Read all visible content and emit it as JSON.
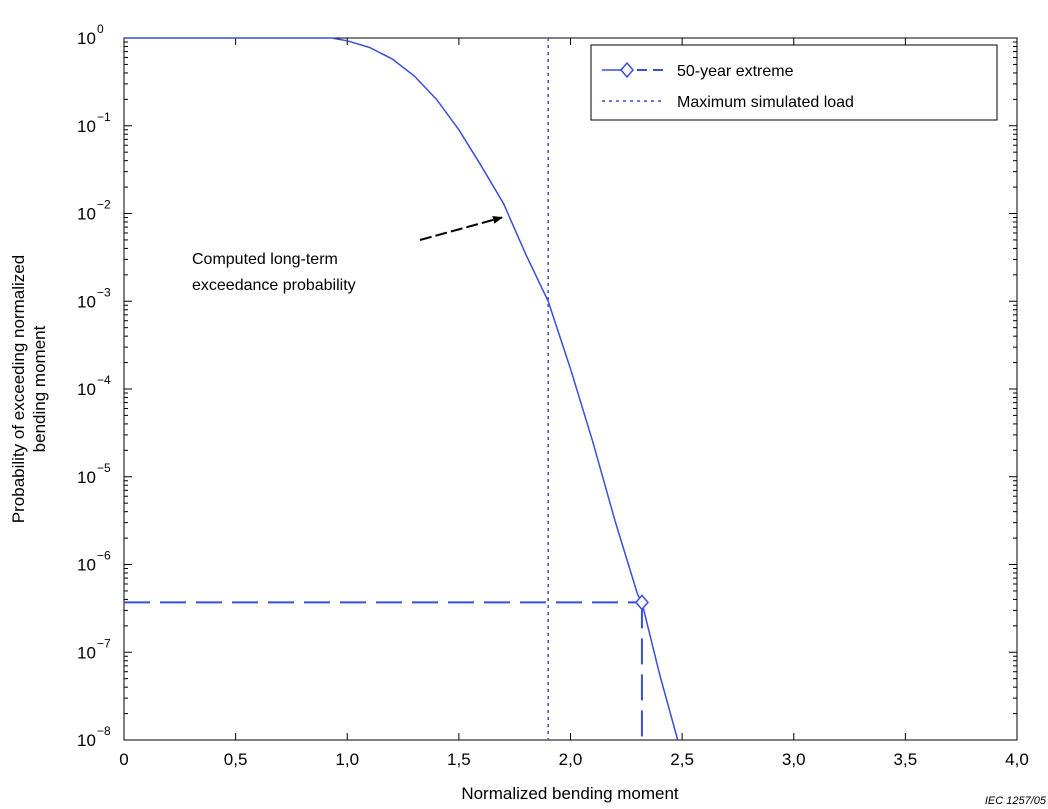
{
  "chart_data": {
    "type": "line",
    "xlabel": "Normalized bending moment",
    "ylabel_lines": [
      "Probability of exceeding normalized",
      "bending moment"
    ],
    "xlim": [
      0,
      4.0
    ],
    "ylim": [
      1e-08,
      1
    ],
    "yscale": "log",
    "grid": false,
    "legend_position": "top-right",
    "x_ticks": [
      0,
      0.5,
      1.0,
      1.5,
      2.0,
      2.5,
      3.0,
      3.5,
      4.0
    ],
    "x_tick_labels": [
      "0",
      "0,5",
      "1,0",
      "1,5",
      "2,0",
      "2,5",
      "3,0",
      "3,5",
      "4,0"
    ],
    "y_ticks": [
      {
        "value": 1,
        "base": "10",
        "exp": "0"
      },
      {
        "value": 0.1,
        "base": "10",
        "exp": "−1"
      },
      {
        "value": 0.01,
        "base": "10",
        "exp": "−2"
      },
      {
        "value": 0.001,
        "base": "10",
        "exp": "−3"
      },
      {
        "value": 0.0001,
        "base": "10",
        "exp": "−4"
      },
      {
        "value": 1e-05,
        "base": "10",
        "exp": "−5"
      },
      {
        "value": 1e-06,
        "base": "10",
        "exp": "−6"
      },
      {
        "value": 1e-07,
        "base": "10",
        "exp": "−7"
      },
      {
        "value": 1e-08,
        "base": "10",
        "exp": "−8"
      }
    ],
    "series": [
      {
        "name": "",
        "style": "solid",
        "color": "#3a4fd8",
        "x": [
          0,
          0.93,
          1.0,
          1.1,
          1.2,
          1.3,
          1.4,
          1.5,
          1.6,
          1.7,
          1.8,
          1.9,
          2.0,
          2.1,
          2.2,
          2.3,
          2.32,
          2.4,
          2.48
        ],
        "y": [
          1,
          1,
          0.93,
          0.78,
          0.58,
          0.37,
          0.2,
          0.09,
          0.035,
          0.013,
          0.0034,
          0.001,
          0.00017,
          2.5e-05,
          3.1e-06,
          4.6e-07,
          3.7e-07,
          5.5e-08,
          1e-08
        ]
      }
    ],
    "extreme_50_year": {
      "label": "50-year extreme",
      "x": 2.32,
      "y": 3.7e-07,
      "color": "#3a4fd8"
    },
    "max_simulated_load": {
      "label": "Maximum simulated load",
      "x": 1.9,
      "color": "#3a4fd8"
    },
    "annotation": {
      "lines": [
        "Computed long-term",
        "exceedance probability"
      ],
      "arrow_target": {
        "x": 1.72,
        "y": 0.01
      }
    }
  },
  "source_label": "IEC   1257/05"
}
